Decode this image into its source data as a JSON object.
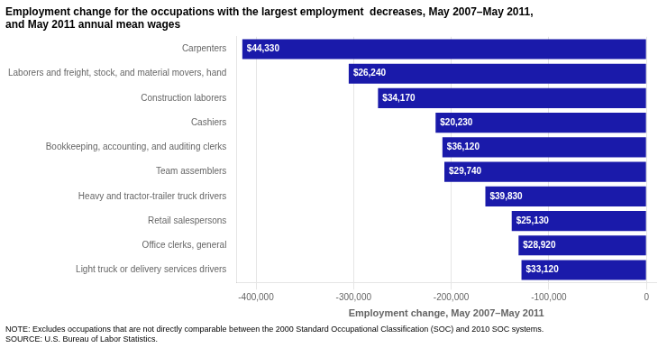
{
  "chart_data": {
    "type": "bar",
    "orientation": "horizontal",
    "title": [
      "Employment change for the occupations with the largest employment  decreases, May 2007–May 2011,",
      "and May 2011 annual mean wages"
    ],
    "categories": [
      "Carpenters",
      "Laborers and freight, stock, and material movers, hand",
      "Construction laborers",
      "Cashiers",
      "Bookkeeping, accounting, and auditing clerks",
      "Team assemblers",
      "Heavy and tractor-trailer truck drivers",
      "Retail salespersons",
      "Office clerks, general",
      "Light truck or delivery services drivers"
    ],
    "values": [
      -414000,
      -305000,
      -275000,
      -216000,
      -209000,
      -207000,
      -165000,
      -138000,
      -131000,
      -128000
    ],
    "bar_labels": [
      "$44,330",
      "$26,240",
      "$34,170",
      "$20,230",
      "$36,120",
      "$29,740",
      "$39,830",
      "$25,130",
      "$28,920",
      "$33,120"
    ],
    "color": "#1a1aaa",
    "xlabel": "Employment change, May 2007–May 2011",
    "xlim": [
      -420000,
      10000
    ],
    "xticks": [
      {
        "value": -400000,
        "label": "-400,000"
      },
      {
        "value": -300000,
        "label": "-300,000"
      },
      {
        "value": -200000,
        "label": "-200,000"
      },
      {
        "value": -100000,
        "label": "-100,000"
      },
      0
    ],
    "grid": true,
    "note": "NOTE: Excludes occupations that are not directly comparable between the 2000 Standard Occupational Classification (SOC) and 2010 SOC systems.\nSOURCE: U.S. Bureau of Labor Statistics."
  }
}
